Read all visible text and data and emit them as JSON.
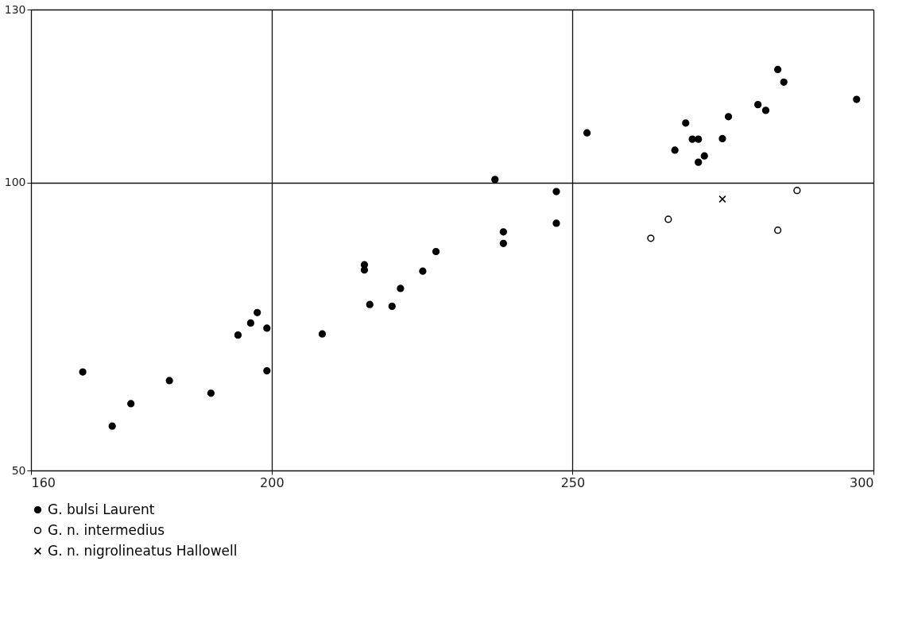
{
  "chart_data": {
    "type": "scatter",
    "xlim": [
      160,
      300
    ],
    "ylim": [
      50,
      130
    ],
    "xticks": [
      160,
      200,
      250,
      300
    ],
    "yticks": [
      50,
      100,
      130
    ],
    "grid": true,
    "legend": "bottom",
    "series": [
      {
        "name": "G. bulsi Laurent",
        "color": "#000000",
        "marker": "circle",
        "x": [
          168.6,
          173.5,
          176.6,
          183.0,
          189.9,
          194.4,
          196.5,
          197.6,
          199.2,
          199.2,
          208.4,
          215.4,
          215.4,
          216.3,
          220.0,
          221.4,
          225.1,
          227.3,
          237.1,
          238.5,
          238.5,
          247.3,
          247.3,
          252.4,
          267.0,
          268.8,
          269.9,
          270.9,
          270.9,
          271.9,
          274.9,
          275.9,
          280.8,
          282.1,
          284.1,
          285.1,
          297.2
        ],
        "values": [
          67.1,
          57.7,
          61.6,
          65.6,
          63.4,
          73.5,
          75.6,
          77.4,
          74.7,
          67.3,
          73.7,
          85.7,
          84.8,
          78.8,
          78.5,
          81.6,
          84.6,
          88.0,
          100.5,
          91.4,
          89.4,
          98.4,
          92.9,
          108.6,
          105.6,
          110.3,
          107.5,
          107.5,
          103.5,
          104.6,
          107.6,
          111.4,
          113.5,
          112.5,
          119.6,
          117.4,
          114.4
        ]
      },
      {
        "name": "G. n. intermedius",
        "color": "#000000",
        "marker": "circle",
        "x": [
          263.0,
          265.9,
          284.1,
          287.3
        ],
        "values": [
          90.3,
          93.6,
          91.7,
          98.6
        ]
      },
      {
        "name": "G. n. nigrolineatus Hallowell",
        "color": "#000000",
        "marker": "cross",
        "x": [
          274.9
        ],
        "values": [
          97.1
        ]
      }
    ]
  }
}
